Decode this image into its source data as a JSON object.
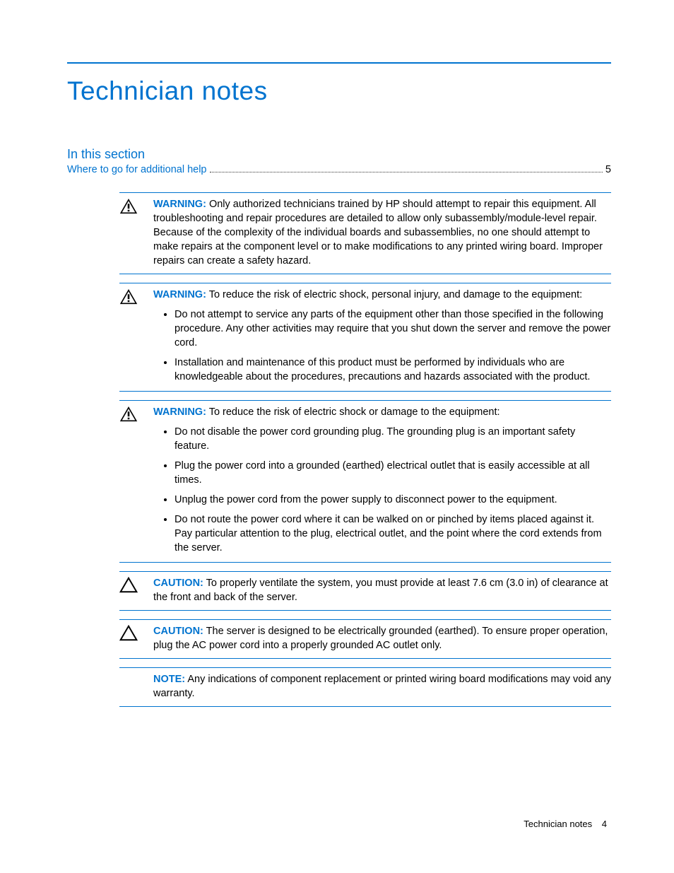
{
  "colors": {
    "accent": "#0073cf",
    "text": "#000000",
    "rule": "#0073cf"
  },
  "header": {
    "title": "Technician notes"
  },
  "section": {
    "label": "In this section",
    "toc": {
      "text": "Where to go for additional help",
      "page": "5"
    }
  },
  "notices": [
    {
      "icon": "warning-bang",
      "label": "WARNING:",
      "label_color": "#0073cf",
      "text": "Only authorized technicians trained by HP should attempt to repair this equipment. All troubleshooting and repair procedures are detailed to allow only subassembly/module-level repair. Because of the complexity of the individual boards and subassemblies, no one should attempt to make repairs at the component level or to make modifications to any printed wiring board. Improper repairs can create a safety hazard.",
      "bullets": []
    },
    {
      "icon": "warning-bang",
      "label": "WARNING:",
      "label_color": "#0073cf",
      "text": "To reduce the risk of electric shock, personal injury, and damage to the equipment:",
      "bullets": [
        "Do not attempt to service any parts of the equipment other than those specified in the following procedure. Any other activities may require that you shut down the server and remove the power cord.",
        "Installation and maintenance of this product must be performed by individuals who are knowledgeable about the procedures, precautions and hazards associated with the product."
      ]
    },
    {
      "icon": "warning-bang",
      "label": "WARNING:",
      "label_color": "#0073cf",
      "text": "To reduce the risk of electric shock or damage to the equipment:",
      "bullets": [
        "Do not disable the power cord grounding plug. The grounding plug is an important safety feature.",
        "Plug the power cord into a grounded (earthed) electrical outlet that is easily accessible at all times.",
        "Unplug the power cord from the power supply to disconnect power to the equipment.",
        "Do not route the power cord where it can be walked on or pinched by items placed against it. Pay particular attention to the plug, electrical outlet, and the point where the cord extends from the server."
      ]
    },
    {
      "icon": "caution",
      "label": "CAUTION:",
      "label_color": "#0073cf",
      "text": "To properly ventilate the system, you must provide at least 7.6 cm (3.0 in) of clearance at the front and back of the server.",
      "bullets": []
    },
    {
      "icon": "caution",
      "label": "CAUTION:",
      "label_color": "#0073cf",
      "text": "The server is designed to be electrically grounded (earthed). To ensure proper operation, plug the AC power cord into a properly grounded AC outlet only.",
      "bullets": []
    },
    {
      "icon": "none",
      "label": "NOTE:",
      "label_color": "#0073cf",
      "text": "Any indications of component replacement or printed wiring board modifications may void any warranty.",
      "bullets": []
    }
  ],
  "footer": {
    "text": "Technician notes",
    "page": "4"
  }
}
